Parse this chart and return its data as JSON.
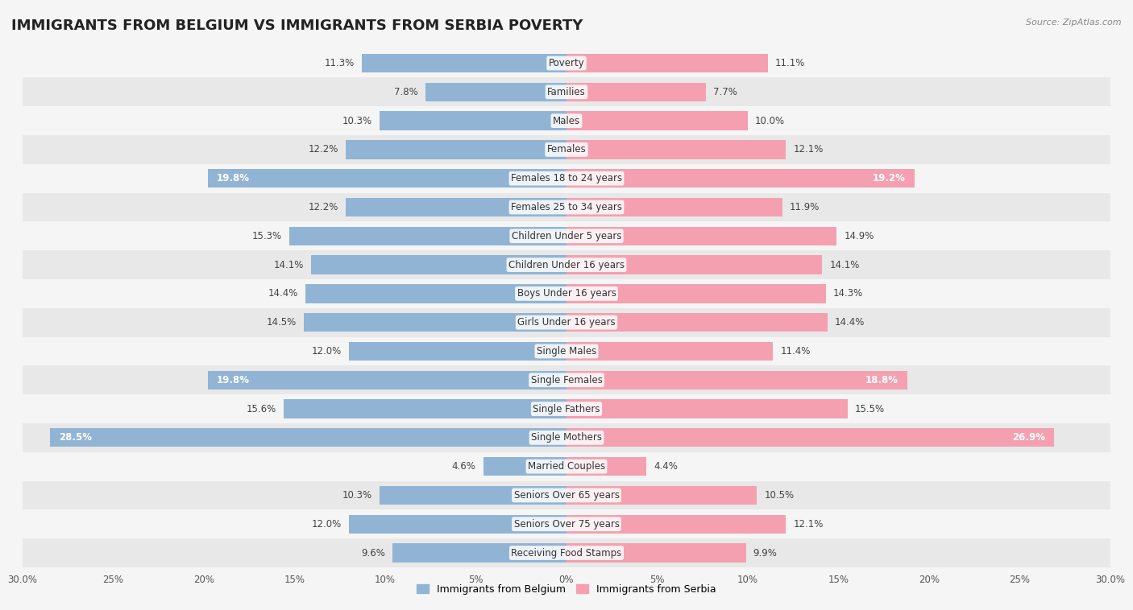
{
  "title": "IMMIGRANTS FROM BELGIUM VS IMMIGRANTS FROM SERBIA POVERTY",
  "source": "Source: ZipAtlas.com",
  "categories": [
    "Poverty",
    "Families",
    "Males",
    "Females",
    "Females 18 to 24 years",
    "Females 25 to 34 years",
    "Children Under 5 years",
    "Children Under 16 years",
    "Boys Under 16 years",
    "Girls Under 16 years",
    "Single Males",
    "Single Females",
    "Single Fathers",
    "Single Mothers",
    "Married Couples",
    "Seniors Over 65 years",
    "Seniors Over 75 years",
    "Receiving Food Stamps"
  ],
  "belgium_values": [
    11.3,
    7.8,
    10.3,
    12.2,
    19.8,
    12.2,
    15.3,
    14.1,
    14.4,
    14.5,
    12.0,
    19.8,
    15.6,
    28.5,
    4.6,
    10.3,
    12.0,
    9.6
  ],
  "serbia_values": [
    11.1,
    7.7,
    10.0,
    12.1,
    19.2,
    11.9,
    14.9,
    14.1,
    14.3,
    14.4,
    11.4,
    18.8,
    15.5,
    26.9,
    4.4,
    10.5,
    12.1,
    9.9
  ],
  "belgium_color": "#92b4d4",
  "serbia_color": "#f4a0b0",
  "belgium_label": "Immigrants from Belgium",
  "serbia_label": "Immigrants from Serbia",
  "xlim": 30.0,
  "background_color": "#f5f5f5",
  "row_light_color": "#f5f5f5",
  "row_dark_color": "#e8e8e8",
  "title_fontsize": 13,
  "label_fontsize": 8.5,
  "value_fontsize": 8.5,
  "bar_height": 0.65,
  "highlight_rows": [
    4,
    11,
    13
  ]
}
